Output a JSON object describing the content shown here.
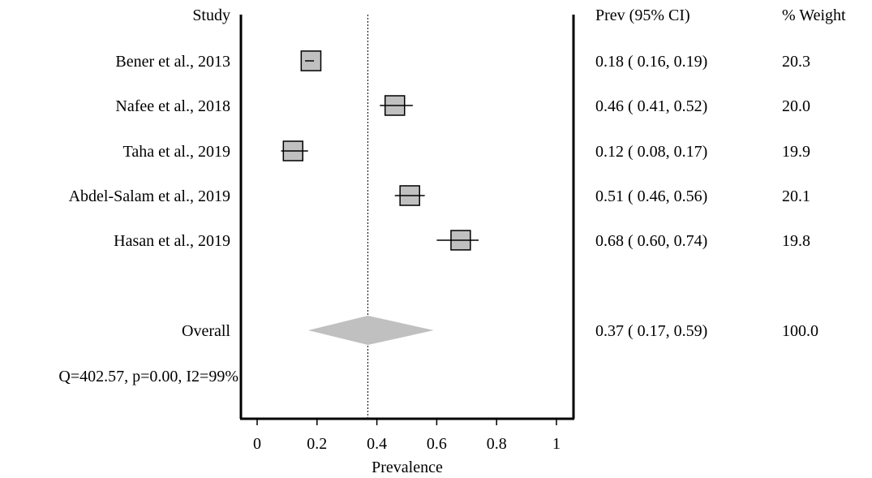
{
  "chart_data": {
    "type": "forest",
    "xlabel": "Prevalence",
    "xlim": [
      -0.05,
      1.05
    ],
    "xticks": [
      0,
      0.2,
      0.4,
      0.6,
      0.8,
      1
    ],
    "xtick_labels": [
      "0",
      "0.2",
      "0.4",
      "0.6",
      "0.8",
      "1"
    ],
    "column_headers": {
      "study": "Study",
      "estimate": "Prev (95% CI)",
      "weight": "% Weight"
    },
    "studies": [
      {
        "label": "Bener et al., 2013",
        "prev": 0.18,
        "lo": 0.16,
        "hi": 0.19,
        "ci_text": "0.18 ( 0.16, 0.19)",
        "weight": 20.3,
        "weight_text": "20.3"
      },
      {
        "label": "Nafee et al., 2018",
        "prev": 0.46,
        "lo": 0.41,
        "hi": 0.52,
        "ci_text": "0.46 ( 0.41, 0.52)",
        "weight": 20.0,
        "weight_text": "20.0"
      },
      {
        "label": "Taha et al., 2019",
        "prev": 0.12,
        "lo": 0.08,
        "hi": 0.17,
        "ci_text": "0.12 ( 0.08, 0.17)",
        "weight": 19.9,
        "weight_text": "19.9"
      },
      {
        "label": "Abdel-Salam et al., 2019",
        "prev": 0.51,
        "lo": 0.46,
        "hi": 0.56,
        "ci_text": "0.51 ( 0.46, 0.56)",
        "weight": 20.1,
        "weight_text": "20.1"
      },
      {
        "label": "Hasan et al., 2019",
        "prev": 0.68,
        "lo": 0.6,
        "hi": 0.74,
        "ci_text": "0.68 ( 0.60, 0.74)",
        "weight": 19.8,
        "weight_text": "19.8"
      }
    ],
    "overall": {
      "label": "Overall",
      "prev": 0.37,
      "lo": 0.17,
      "hi": 0.59,
      "ci_text": "0.37 ( 0.17, 0.59)",
      "weight": 100.0,
      "weight_text": "100.0"
    },
    "heterogeneity": "Q=402.57, p=0.00, I2=99%",
    "reference_line": 0.37,
    "colors": {
      "box_fill": "#c0c0c0",
      "diamond_fill": "#c0c0c0",
      "line": "#000000"
    }
  }
}
